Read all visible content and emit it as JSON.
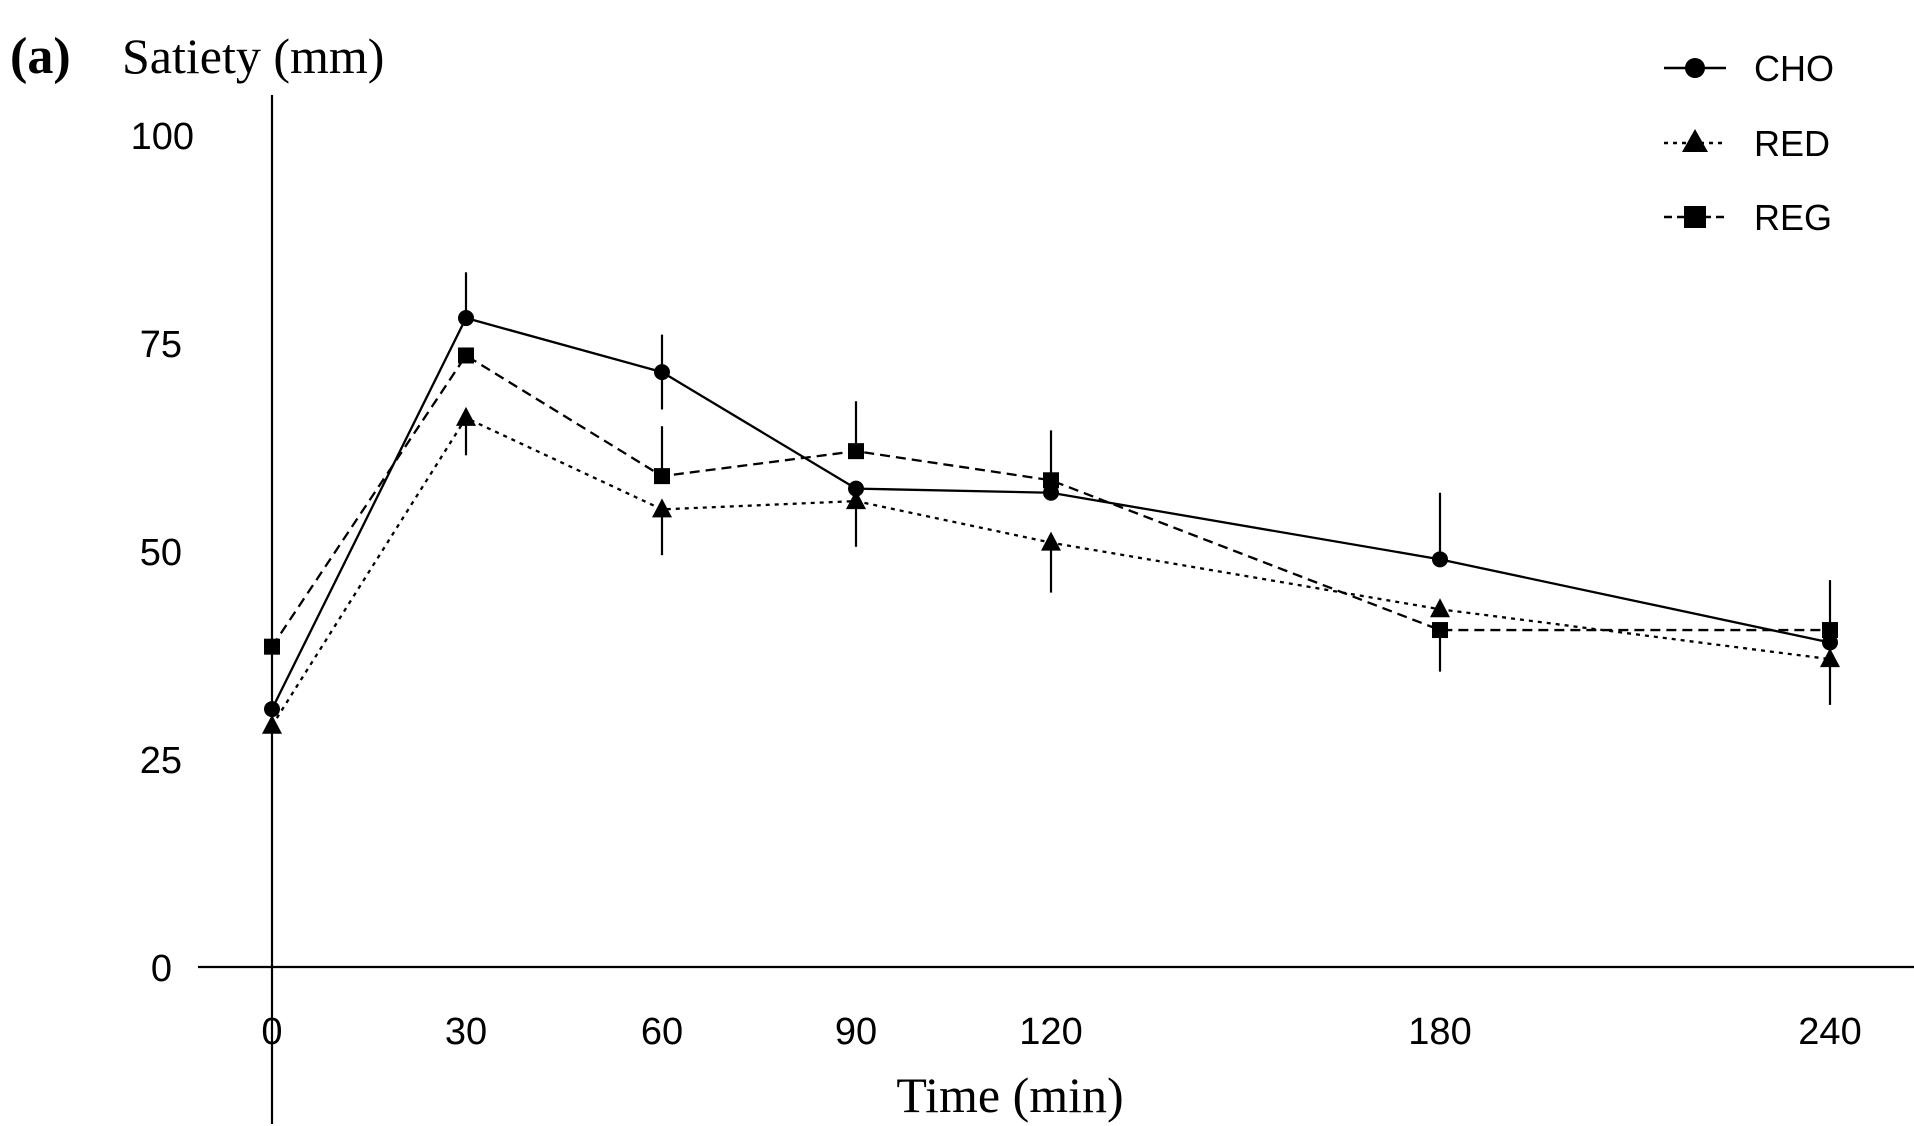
{
  "figure": {
    "panel_label": "(a)"
  },
  "chart_data": {
    "type": "line",
    "ylabel": "Satiety (mm)",
    "xlabel": "Time (min)",
    "x": [
      0,
      30,
      60,
      90,
      120,
      180,
      240
    ],
    "x_tick_labels": [
      "0",
      "30",
      "60",
      "90",
      "120",
      "180",
      "240"
    ],
    "y_ticks": [
      0,
      25,
      50,
      75,
      100
    ],
    "y_tick_labels": [
      "0",
      "25",
      "50",
      "75",
      "100"
    ],
    "ylim": [
      0,
      100
    ],
    "grid": false,
    "legend_position": "top-right",
    "series": [
      {
        "name": "CHO",
        "marker": "circle",
        "line_style": "solid",
        "values": [
          31,
          78,
          71.5,
          57.5,
          57,
          49,
          39
        ],
        "error_upper": [
          null,
          83.5,
          76,
          null,
          64.5,
          57,
          46.5
        ],
        "error_lower": [
          null,
          null,
          67,
          null,
          null,
          null,
          null
        ]
      },
      {
        "name": "RED",
        "marker": "triangle",
        "line_style": "dotted",
        "values": [
          29,
          66,
          55,
          56,
          51,
          43,
          37
        ],
        "error_upper": [
          null,
          null,
          null,
          null,
          null,
          null,
          null
        ],
        "error_lower": [
          null,
          61.5,
          49.5,
          50.5,
          45,
          null,
          31.5
        ]
      },
      {
        "name": "REG",
        "marker": "square",
        "line_style": "dashed",
        "values": [
          38.5,
          73.5,
          59,
          62,
          58.5,
          40.5,
          40.5
        ],
        "error_upper": [
          null,
          null,
          65,
          68,
          null,
          null,
          null
        ],
        "error_lower": [
          null,
          null,
          null,
          null,
          null,
          35.5,
          null
        ]
      }
    ]
  }
}
